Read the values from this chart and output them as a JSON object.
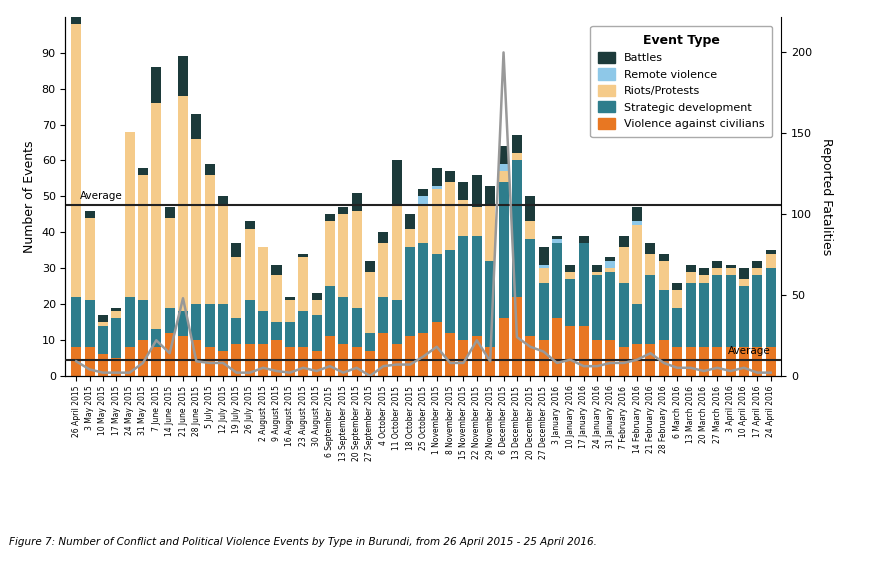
{
  "title": "Figure 7: Number of Conflict and Political Violence Events by Type in Burundi, from 26 April 2015 - 25 April 2016.",
  "ylabel_left": "Number of Events",
  "ylabel_right": "Reported Fatalities",
  "average_events": 47.5,
  "average_fatalities": 10,
  "ylim_left": [
    0,
    100
  ],
  "ylim_right": [
    0,
    222
  ],
  "colors": {
    "battles": "#1c3a3a",
    "remote": "#8ec8e8",
    "riots": "#f5cb8a",
    "strategic": "#2e7d8c",
    "violence": "#e87722"
  },
  "fatalities_line_color": "#999999",
  "average_line_color": "#222222",
  "labels": [
    "26 April 2015",
    "3 May 2015",
    "10 May 2015",
    "17 May 2015",
    "24 May 2015",
    "31 May 2015",
    "7 June 2015",
    "14 June 2015",
    "21 June 2015",
    "28 June 2015",
    "5 July 2015",
    "12 July 2015",
    "19 July 2015",
    "26 July 2015",
    "2 August 2015",
    "9 August 2015",
    "16 August 2015",
    "23 August 2015",
    "30 August 2015",
    "6 September 2015",
    "13 September 2015",
    "20 September 2015",
    "27 September 2015",
    "4 October 2015",
    "11 October 2015",
    "18 October 2015",
    "25 October 2015",
    "1 November 2015",
    "8 November 2015",
    "15 November 2015",
    "22 November 2015",
    "29 November 2015",
    "6 December 2015",
    "13 December 2015",
    "20 December 2015",
    "27 December 2015",
    "3 January 2016",
    "10 January 2016",
    "17 January 2016",
    "24 January 2016",
    "31 January 2016",
    "7 February 2016",
    "14 February 2016",
    "21 February 2016",
    "28 February 2016",
    "6 March 2016",
    "13 March 2016",
    "20 March 2016",
    "27 March 2016",
    "3 April 2016",
    "10 April 2016",
    "17 April 2016",
    "24 April 2016"
  ],
  "battles": [
    5,
    2,
    2,
    1,
    0,
    2,
    10,
    3,
    11,
    7,
    3,
    2,
    4,
    2,
    0,
    3,
    1,
    1,
    2,
    2,
    2,
    5,
    3,
    3,
    12,
    4,
    2,
    5,
    3,
    5,
    9,
    5,
    5,
    5,
    7,
    5,
    1,
    2,
    2,
    2,
    1,
    3,
    4,
    3,
    2,
    2,
    2,
    2,
    2,
    1,
    3,
    2,
    1
  ],
  "remote": [
    0,
    0,
    0,
    0,
    0,
    0,
    0,
    0,
    0,
    0,
    0,
    0,
    0,
    0,
    0,
    0,
    0,
    0,
    0,
    0,
    0,
    0,
    0,
    0,
    0,
    0,
    2,
    1,
    0,
    0,
    0,
    0,
    2,
    0,
    0,
    1,
    1,
    0,
    0,
    0,
    2,
    0,
    1,
    0,
    0,
    0,
    0,
    0,
    0,
    0,
    0,
    0,
    0
  ],
  "riots": [
    76,
    23,
    1,
    2,
    46,
    35,
    63,
    25,
    60,
    46,
    36,
    28,
    17,
    20,
    18,
    13,
    6,
    15,
    4,
    18,
    23,
    27,
    17,
    15,
    27,
    5,
    11,
    18,
    19,
    10,
    8,
    16,
    3,
    2,
    5,
    4,
    0,
    2,
    0,
    1,
    1,
    10,
    22,
    6,
    8,
    5,
    3,
    2,
    2,
    2,
    2,
    2,
    4
  ],
  "strategic": [
    14,
    13,
    8,
    11,
    14,
    11,
    5,
    7,
    7,
    10,
    12,
    13,
    7,
    12,
    9,
    5,
    7,
    10,
    10,
    14,
    13,
    11,
    5,
    10,
    12,
    25,
    25,
    19,
    23,
    29,
    28,
    24,
    38,
    38,
    27,
    16,
    21,
    13,
    23,
    18,
    19,
    18,
    11,
    19,
    14,
    11,
    18,
    18,
    20,
    20,
    17,
    20,
    22
  ],
  "violence": [
    8,
    8,
    6,
    5,
    8,
    10,
    8,
    12,
    11,
    10,
    8,
    7,
    9,
    9,
    9,
    10,
    8,
    8,
    7,
    11,
    9,
    8,
    7,
    12,
    9,
    11,
    12,
    15,
    12,
    10,
    11,
    8,
    16,
    22,
    11,
    10,
    16,
    14,
    14,
    10,
    10,
    8,
    9,
    9,
    10,
    8,
    8,
    8,
    8,
    8,
    8,
    8,
    8
  ],
  "fatalities": [
    9,
    4,
    2,
    2,
    2,
    8,
    22,
    14,
    48,
    9,
    8,
    8,
    2,
    2,
    5,
    3,
    2,
    5,
    3,
    6,
    2,
    5,
    0,
    6,
    7,
    7,
    12,
    18,
    8,
    8,
    22,
    9,
    200,
    24,
    18,
    15,
    8,
    10,
    6,
    6,
    8,
    8,
    10,
    14,
    8,
    5,
    5,
    3,
    5,
    3,
    5,
    2,
    2
  ]
}
